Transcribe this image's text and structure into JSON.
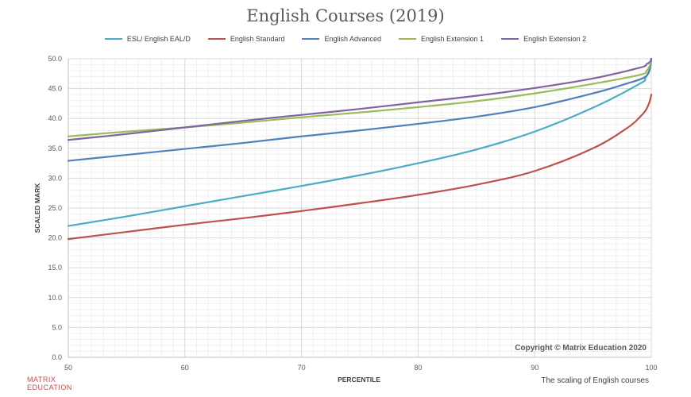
{
  "chart_data": {
    "type": "line",
    "title": "English Courses (2019)",
    "xlabel": "PERCENTILE",
    "ylabel": "SCALED MARK",
    "xlim": [
      50,
      100
    ],
    "ylim": [
      0,
      50
    ],
    "x_ticks": [
      "50",
      "60",
      "70",
      "80",
      "90",
      "100"
    ],
    "y_ticks": [
      "0.0",
      "5.0",
      "10.0",
      "15.0",
      "20.0",
      "25.0",
      "30.0",
      "35.0",
      "40.0",
      "45.0",
      "50.0"
    ],
    "grid": true,
    "legend_position": "top",
    "annotation": "Copyright © Matrix Education 2020",
    "series": [
      {
        "name": "ESL/ English EAL/D",
        "color": "#4bacc6",
        "x": [
          50,
          55,
          60,
          65,
          70,
          75,
          80,
          85,
          90,
          95,
          99,
          99.5,
          99.9,
          100
        ],
        "y": [
          22.0,
          23.6,
          25.3,
          27.0,
          28.7,
          30.5,
          32.5,
          34.8,
          37.8,
          41.8,
          45.8,
          46.8,
          48.5,
          50.0
        ]
      },
      {
        "name": "English Standard",
        "color": "#c0504d",
        "x": [
          50,
          55,
          60,
          65,
          70,
          75,
          80,
          85,
          90,
          95,
          98,
          99,
          99.5,
          99.8,
          99.95,
          100
        ],
        "y": [
          19.8,
          21.0,
          22.2,
          23.3,
          24.5,
          25.8,
          27.2,
          28.9,
          31.2,
          35.0,
          38.5,
          40.2,
          41.3,
          42.5,
          43.5,
          44.0
        ]
      },
      {
        "name": "English Advanced",
        "color": "#4f81bd",
        "x": [
          50,
          55,
          60,
          65,
          70,
          75,
          80,
          85,
          90,
          95,
          98,
          99.5,
          99.9,
          100
        ],
        "y": [
          32.9,
          33.9,
          34.9,
          35.9,
          37.0,
          38.0,
          39.1,
          40.3,
          41.9,
          44.2,
          45.9,
          47.0,
          48.5,
          50.0
        ]
      },
      {
        "name": "English Extension 1",
        "color": "#9bbb59",
        "x": [
          50,
          55,
          60,
          65,
          70,
          75,
          80,
          85,
          90,
          95,
          99,
          99.6,
          99.9,
          100
        ],
        "y": [
          37.0,
          37.8,
          38.5,
          39.3,
          40.2,
          41.0,
          41.9,
          42.9,
          44.2,
          45.8,
          47.3,
          48.0,
          49.0,
          50.0
        ]
      },
      {
        "name": "English Extension 2",
        "color": "#8064a2",
        "x": [
          50,
          55,
          60,
          65,
          70,
          75,
          80,
          85,
          90,
          95,
          99,
          99.6,
          99.9,
          100
        ],
        "y": [
          36.4,
          37.4,
          38.5,
          39.6,
          40.6,
          41.6,
          42.7,
          43.8,
          45.1,
          46.7,
          48.5,
          49.1,
          49.5,
          50.0
        ]
      }
    ]
  },
  "branding": {
    "line1": "MATRIX",
    "line2": "EDUCATION"
  },
  "footer_note": "The scaling of English courses"
}
